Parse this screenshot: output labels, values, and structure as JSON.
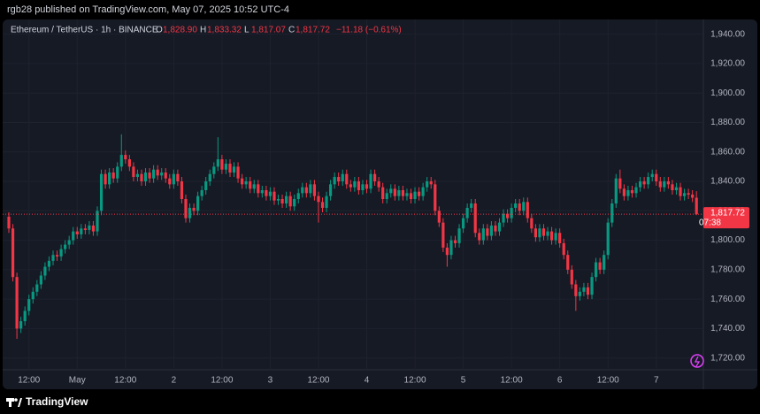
{
  "header": {
    "published": "rgb28 published on TradingView.com, May 07, 2025 10:52 UTC-4"
  },
  "footer": {
    "brand": "TradingView"
  },
  "chart_data": {
    "type": "candlestick",
    "symbol": "Ethereum / TetherUS · 1h · BINANCE",
    "ohlc_header": {
      "labels": [
        "O",
        "H",
        "L",
        "C"
      ],
      "value_labels": [
        "1,828.90",
        "1,833.32",
        "1,817.07",
        "1,817.72"
      ],
      "change": "−11.18 (−0.61%)"
    },
    "last_price_label": "1,817.72",
    "countdown": "07:38",
    "up_color": "#089981",
    "down_color": "#f23645",
    "categories": [
      null,
      null,
      null,
      null,
      null,
      "12:00",
      null,
      null,
      null,
      null,
      null,
      null,
      null,
      null,
      null,
      null,
      null,
      "May",
      null,
      null,
      null,
      null,
      null,
      null,
      null,
      null,
      null,
      null,
      null,
      "12:00",
      null,
      null,
      null,
      null,
      null,
      null,
      null,
      null,
      null,
      null,
      null,
      "2",
      null,
      null,
      null,
      null,
      null,
      null,
      null,
      null,
      null,
      null,
      null,
      "12:00",
      null,
      null,
      null,
      null,
      null,
      null,
      null,
      null,
      null,
      null,
      null,
      "3",
      null,
      null,
      null,
      null,
      null,
      null,
      null,
      null,
      null,
      null,
      null,
      "12:00",
      null,
      null,
      null,
      null,
      null,
      null,
      null,
      null,
      null,
      null,
      null,
      "4",
      null,
      null,
      null,
      null,
      null,
      null,
      null,
      null,
      null,
      null,
      null,
      "12:00",
      null,
      null,
      null,
      null,
      null,
      null,
      null,
      null,
      null,
      null,
      null,
      "5",
      null,
      null,
      null,
      null,
      null,
      null,
      null,
      null,
      null,
      null,
      null,
      "12:00",
      null,
      null,
      null,
      null,
      null,
      null,
      null,
      null,
      null,
      null,
      null,
      "6",
      null,
      null,
      null,
      null,
      null,
      null,
      null,
      null,
      null,
      null,
      null,
      "12:00",
      null,
      null,
      null,
      null,
      null,
      null,
      null,
      null,
      null,
      null,
      null,
      "7",
      null,
      null,
      null,
      null,
      null,
      null,
      null,
      null,
      null,
      null
    ],
    "open": [
      1816,
      1808,
      1775,
      1740,
      1745,
      1752,
      1760,
      1765,
      1770,
      1776,
      1782,
      1786,
      1790,
      1789,
      1794,
      1797,
      1800,
      1806,
      1804,
      1808,
      1807,
      1810,
      1806,
      1820,
      1845,
      1838,
      1846,
      1842,
      1850,
      1858,
      1855,
      1850,
      1843,
      1845,
      1840,
      1846,
      1842,
      1848,
      1844,
      1846,
      1842,
      1838,
      1845,
      1840,
      1828,
      1815,
      1822,
      1820,
      1830,
      1834,
      1840,
      1845,
      1850,
      1855,
      1848,
      1852,
      1846,
      1850,
      1842,
      1838,
      1840,
      1835,
      1838,
      1832,
      1834,
      1830,
      1833,
      1827,
      1828,
      1825,
      1830,
      1823,
      1828,
      1832,
      1836,
      1832,
      1838,
      1830,
      1826,
      1822,
      1830,
      1838,
      1843,
      1840,
      1845,
      1838,
      1836,
      1840,
      1834,
      1838,
      1835,
      1845,
      1840,
      1836,
      1828,
      1832,
      1835,
      1830,
      1834,
      1830,
      1832,
      1828,
      1833,
      1830,
      1836,
      1840,
      1838,
      1820,
      1812,
      1795,
      1790,
      1800,
      1798,
      1808,
      1815,
      1822,
      1825,
      1805,
      1800,
      1808,
      1803,
      1810,
      1806,
      1812,
      1818,
      1815,
      1822,
      1825,
      1820,
      1826,
      1815,
      1808,
      1802,
      1808,
      1803,
      1806,
      1800,
      1805,
      1798,
      1790,
      1780,
      1770,
      1762,
      1765,
      1768,
      1763,
      1775,
      1785,
      1780,
      1790,
      1812,
      1825,
      1842,
      1835,
      1830,
      1834,
      1832,
      1836,
      1840,
      1838,
      1843,
      1845,
      1840,
      1836,
      1840,
      1838,
      1834,
      1836,
      1830,
      1832,
      1831,
      1828.9
    ],
    "high": [
      1819,
      1811,
      1778,
      1748,
      1755,
      1763,
      1768,
      1773,
      1779,
      1785,
      1789,
      1793,
      1793,
      1797,
      1800,
      1803,
      1809,
      1809,
      1811,
      1811,
      1813,
      1813,
      1823,
      1848,
      1848,
      1849,
      1849,
      1853,
      1872,
      1861,
      1858,
      1853,
      1848,
      1848,
      1849,
      1849,
      1851,
      1851,
      1849,
      1849,
      1845,
      1848,
      1848,
      1843,
      1831,
      1825,
      1825,
      1833,
      1837,
      1843,
      1848,
      1853,
      1870,
      1858,
      1855,
      1855,
      1853,
      1853,
      1845,
      1843,
      1843,
      1841,
      1841,
      1837,
      1837,
      1836,
      1836,
      1831,
      1831,
      1833,
      1833,
      1831,
      1835,
      1839,
      1839,
      1841,
      1841,
      1833,
      1829,
      1833,
      1841,
      1846,
      1846,
      1848,
      1848,
      1841,
      1843,
      1843,
      1841,
      1841,
      1848,
      1848,
      1843,
      1839,
      1835,
      1838,
      1838,
      1837,
      1837,
      1835,
      1835,
      1836,
      1836,
      1839,
      1843,
      1843,
      1841,
      1823,
      1815,
      1798,
      1803,
      1803,
      1811,
      1818,
      1825,
      1828,
      1828,
      1808,
      1811,
      1811,
      1813,
      1813,
      1815,
      1821,
      1821,
      1825,
      1828,
      1828,
      1829,
      1829,
      1818,
      1811,
      1811,
      1811,
      1809,
      1809,
      1808,
      1808,
      1801,
      1793,
      1783,
      1773,
      1768,
      1771,
      1771,
      1778,
      1788,
      1788,
      1793,
      1815,
      1828,
      1845,
      1848,
      1838,
      1837,
      1837,
      1839,
      1843,
      1843,
      1846,
      1848,
      1848,
      1843,
      1843,
      1843,
      1841,
      1839,
      1839,
      1835,
      1835,
      1834,
      1833.32
    ],
    "low": [
      1805,
      1772,
      1733,
      1737,
      1742,
      1749,
      1757,
      1762,
      1767,
      1773,
      1779,
      1783,
      1786,
      1786,
      1791,
      1794,
      1797,
      1801,
      1801,
      1804,
      1804,
      1803,
      1803,
      1817,
      1835,
      1835,
      1839,
      1839,
      1847,
      1852,
      1847,
      1840,
      1840,
      1837,
      1837,
      1839,
      1839,
      1841,
      1841,
      1839,
      1835,
      1835,
      1837,
      1825,
      1812,
      1812,
      1817,
      1817,
      1827,
      1831,
      1837,
      1842,
      1847,
      1845,
      1845,
      1843,
      1843,
      1839,
      1835,
      1835,
      1832,
      1832,
      1829,
      1829,
      1827,
      1827,
      1824,
      1824,
      1822,
      1822,
      1820,
      1820,
      1825,
      1829,
      1829,
      1829,
      1827,
      1812,
      1819,
      1819,
      1827,
      1835,
      1837,
      1837,
      1835,
      1833,
      1833,
      1831,
      1831,
      1832,
      1832,
      1837,
      1833,
      1825,
      1825,
      1829,
      1827,
      1827,
      1827,
      1827,
      1825,
      1825,
      1827,
      1827,
      1833,
      1835,
      1817,
      1809,
      1792,
      1782,
      1787,
      1795,
      1795,
      1805,
      1812,
      1819,
      1802,
      1797,
      1797,
      1800,
      1800,
      1803,
      1803,
      1809,
      1812,
      1812,
      1819,
      1817,
      1817,
      1812,
      1805,
      1799,
      1799,
      1800,
      1800,
      1797,
      1797,
      1795,
      1787,
      1777,
      1767,
      1752,
      1759,
      1762,
      1760,
      1760,
      1772,
      1777,
      1777,
      1787,
      1809,
      1822,
      1832,
      1827,
      1827,
      1829,
      1829,
      1833,
      1835,
      1835,
      1840,
      1837,
      1833,
      1833,
      1835,
      1831,
      1831,
      1827,
      1827,
      1828,
      1825.9,
      1817.07
    ],
    "close": [
      1808,
      1775,
      1740,
      1745,
      1752,
      1760,
      1765,
      1770,
      1776,
      1782,
      1786,
      1790,
      1789,
      1794,
      1797,
      1800,
      1806,
      1804,
      1808,
      1807,
      1810,
      1806,
      1820,
      1845,
      1838,
      1846,
      1842,
      1850,
      1858,
      1855,
      1850,
      1843,
      1845,
      1840,
      1846,
      1842,
      1848,
      1844,
      1846,
      1842,
      1838,
      1845,
      1840,
      1828,
      1815,
      1822,
      1820,
      1830,
      1834,
      1840,
      1845,
      1850,
      1855,
      1848,
      1852,
      1846,
      1850,
      1842,
      1838,
      1840,
      1835,
      1838,
      1832,
      1834,
      1830,
      1833,
      1827,
      1828,
      1825,
      1830,
      1823,
      1828,
      1832,
      1836,
      1832,
      1838,
      1830,
      1826,
      1822,
      1830,
      1838,
      1843,
      1840,
      1845,
      1838,
      1836,
      1840,
      1834,
      1838,
      1835,
      1845,
      1840,
      1836,
      1828,
      1832,
      1835,
      1830,
      1834,
      1830,
      1832,
      1828,
      1833,
      1830,
      1836,
      1840,
      1838,
      1820,
      1812,
      1795,
      1790,
      1800,
      1798,
      1808,
      1815,
      1822,
      1825,
      1805,
      1800,
      1808,
      1803,
      1810,
      1806,
      1812,
      1818,
      1815,
      1822,
      1825,
      1820,
      1826,
      1815,
      1808,
      1802,
      1808,
      1803,
      1806,
      1800,
      1805,
      1798,
      1790,
      1780,
      1770,
      1762,
      1765,
      1768,
      1763,
      1775,
      1785,
      1780,
      1790,
      1812,
      1825,
      1842,
      1835,
      1830,
      1834,
      1832,
      1836,
      1840,
      1838,
      1843,
      1845,
      1840,
      1836,
      1840,
      1838,
      1834,
      1836,
      1830,
      1832,
      1831,
      1828.9,
      1817.72
    ],
    "ylim": [
      1712,
      1950
    ],
    "yticks": [
      {
        "value": 1720,
        "label": "1,720.00"
      },
      {
        "value": 1740,
        "label": "1,740.00"
      },
      {
        "value": 1760,
        "label": "1,760.00"
      },
      {
        "value": 1780,
        "label": "1,780.00"
      },
      {
        "value": 1800,
        "label": "1,800.00"
      },
      {
        "value": 1820,
        "label": "1,820.00"
      },
      {
        "value": 1840,
        "label": "1,840.00"
      },
      {
        "value": 1860,
        "label": "1,860.00"
      },
      {
        "value": 1880,
        "label": "1,880.00"
      },
      {
        "value": 1900,
        "label": "1,900.00"
      },
      {
        "value": 1920,
        "label": "1,920.00"
      },
      {
        "value": 1940,
        "label": "1,940.00"
      }
    ],
    "grid": true
  }
}
